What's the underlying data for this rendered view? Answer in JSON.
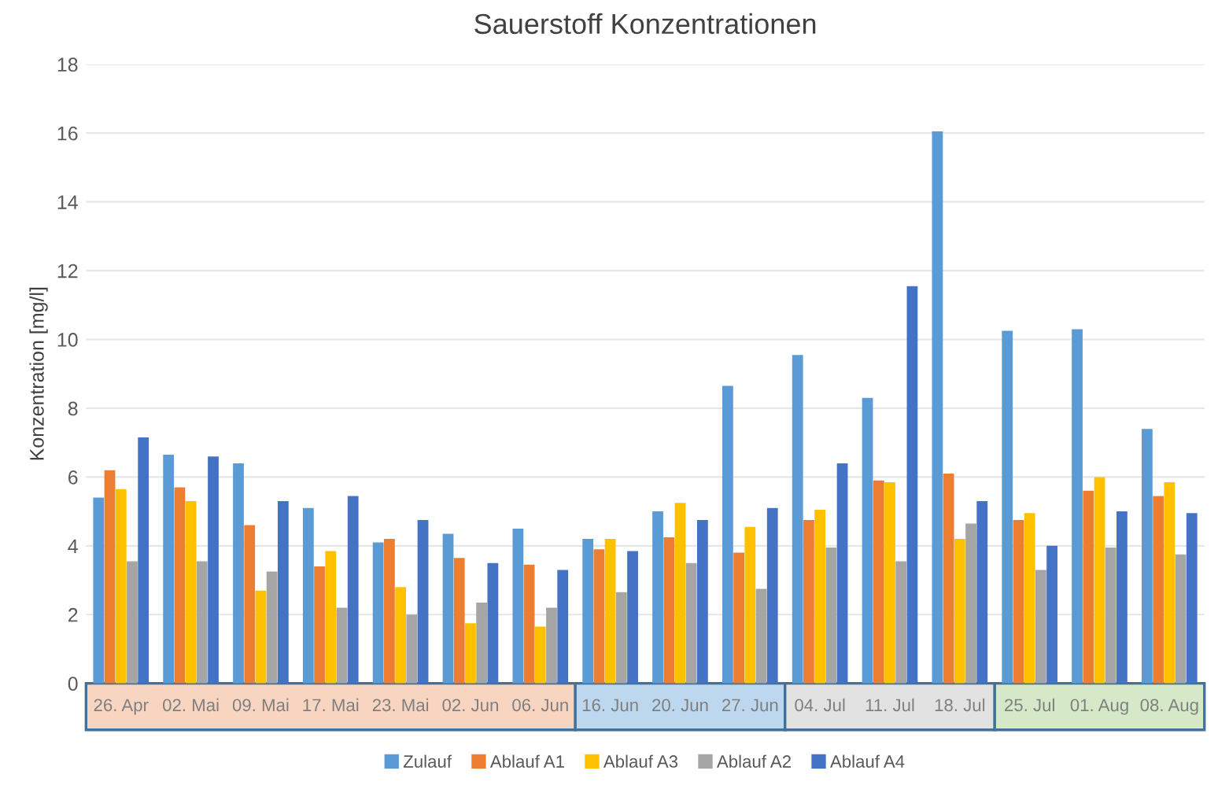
{
  "chart_data": {
    "type": "bar",
    "title": "Sauerstoff Konzentrationen",
    "ylabel": "Konzentration [mg/l]",
    "categories": [
      "26. Apr",
      "02. Mai",
      "09. Mai",
      "17. Mai",
      "23. Mai",
      "02. Jun",
      "06. Jun",
      "16. Jun",
      "20. Jun",
      "27. Jun",
      "04. Jul",
      "11. Jul",
      "18. Jul",
      "25. Jul",
      "01. Aug",
      "08. Aug"
    ],
    "series": [
      {
        "name": "Zulauf",
        "color": "#5b9bd5",
        "values": [
          5.4,
          6.65,
          6.4,
          5.1,
          4.1,
          4.35,
          4.5,
          4.2,
          5.0,
          8.65,
          9.55,
          8.3,
          16.05,
          10.25,
          10.3,
          7.4
        ]
      },
      {
        "name": "Ablauf A1",
        "color": "#ed7d31",
        "values": [
          6.2,
          5.7,
          4.6,
          3.4,
          4.2,
          3.65,
          3.45,
          3.9,
          4.25,
          3.8,
          4.75,
          5.9,
          6.1,
          4.75,
          5.6,
          5.45
        ]
      },
      {
        "name": "Ablauf A3",
        "color": "#ffc000",
        "values": [
          5.65,
          5.3,
          2.7,
          3.85,
          2.8,
          1.75,
          1.65,
          4.2,
          5.25,
          4.55,
          5.05,
          5.85,
          4.2,
          4.95,
          6.0,
          5.85
        ]
      },
      {
        "name": "Ablauf A2",
        "color": "#a5a5a5",
        "values": [
          3.55,
          3.55,
          3.25,
          2.2,
          2.0,
          2.35,
          2.2,
          2.65,
          3.5,
          2.75,
          3.95,
          3.55,
          4.65,
          3.3,
          3.95,
          3.75
        ]
      },
      {
        "name": "Ablauf A4",
        "color": "#4472c4",
        "values": [
          7.15,
          6.6,
          5.3,
          5.45,
          4.75,
          3.5,
          3.3,
          3.85,
          4.75,
          5.1,
          6.4,
          11.55,
          5.3,
          4.0,
          5.0,
          4.95
        ]
      }
    ],
    "ylim": [
      0,
      18
    ],
    "yticks": [
      0,
      2,
      4,
      6,
      8,
      10,
      12,
      14,
      16,
      18
    ],
    "grid": "y",
    "legend": "bottom"
  }
}
